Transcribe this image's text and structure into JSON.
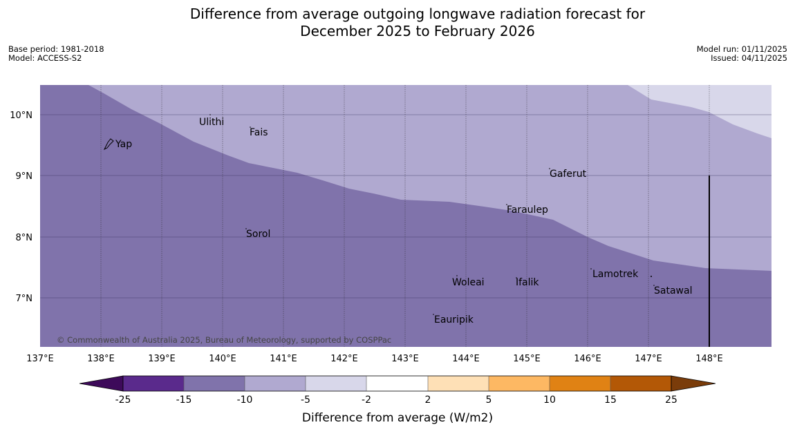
{
  "header": {
    "title_line1": "Difference from average outgoing longwave radiation forecast for",
    "title_line2": "December 2025 to February 2026",
    "base_period": "Base period: 1981-2018",
    "model": "Model: ACCESS-S2",
    "model_run": "Model run: 01/11/2025",
    "issued": "Issued: 04/11/2025"
  },
  "map": {
    "longitude_ticks": [
      "137°E",
      "138°E",
      "139°E",
      "140°E",
      "141°E",
      "142°E",
      "143°E",
      "144°E",
      "145°E",
      "146°E",
      "147°E",
      "148°E"
    ],
    "latitude_ticks": [
      "10°N",
      "9°N",
      "8°N",
      "7°N"
    ],
    "places": [
      {
        "name": "Yap"
      },
      {
        "name": "Ulithi"
      },
      {
        "name": "Fais"
      },
      {
        "name": "Gaferut"
      },
      {
        "name": "Faraulep"
      },
      {
        "name": "Sorol"
      },
      {
        "name": "Woleai"
      },
      {
        "name": "Ifalik"
      },
      {
        "name": "Lamotrek"
      },
      {
        "name": "Satawal"
      },
      {
        "name": "Eauripik"
      }
    ],
    "copyright": "© Commonwealth of Australia 2025, Bureau of Meteorology, supported by COSPPac",
    "colors": {
      "band_-15_-10": "#8073ab",
      "band_-10_-5": "#b0a9d0",
      "band_-5_-2": "#d8d7ea"
    }
  },
  "colorbar": {
    "ticks": [
      "-25",
      "-15",
      "-10",
      "-5",
      "-2",
      "2",
      "5",
      "10",
      "15",
      "25"
    ],
    "label": "Difference from average (W/m2)",
    "under_color": "#3d0a5a",
    "over_color": "#7a3c0a",
    "colors": [
      "#5a2a8c",
      "#8073ab",
      "#b0a9d0",
      "#d8d7ea",
      "#ffffff",
      "#fee0b6",
      "#fdb863",
      "#e08214",
      "#b35806"
    ]
  }
}
